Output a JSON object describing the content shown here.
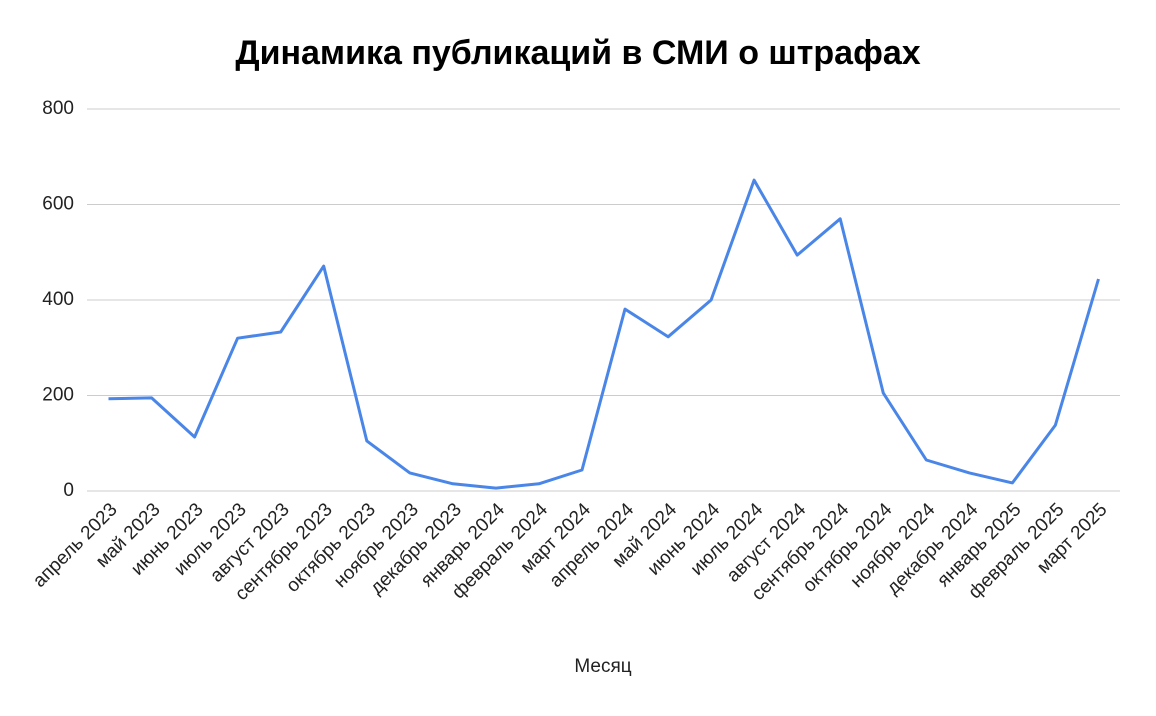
{
  "chart_data": {
    "type": "line",
    "title": "Динамика публикаций в СМИ о штрафах",
    "x_label": "Месяц",
    "categories": [
      "апрель 2023",
      "май 2023",
      "июнь 2023",
      "июль 2023",
      "август 2023",
      "сентябрь 2023",
      "октябрь 2023",
      "ноябрь 2023",
      "декабрь 2023",
      "январь 2024",
      "февраль 2024",
      "март 2024",
      "апрель 2024",
      "май 2024",
      "июнь 2024",
      "июль 2024",
      "август 2024",
      "сентябрь 2024",
      "октябрь 2024",
      "ноябрь 2024",
      "декабрь 2024",
      "январь 2025",
      "февраль 2025",
      "март 2025"
    ],
    "values": [
      193,
      195,
      113,
      320,
      333,
      471,
      105,
      38,
      15,
      6,
      15,
      44,
      381,
      323,
      400,
      651,
      494,
      570,
      205,
      65,
      38,
      17,
      138,
      444
    ],
    "color": "#4a86e8",
    "ylim": [
      0,
      800
    ],
    "yticks": [
      0,
      200,
      400,
      600,
      800
    ],
    "grid": true
  }
}
